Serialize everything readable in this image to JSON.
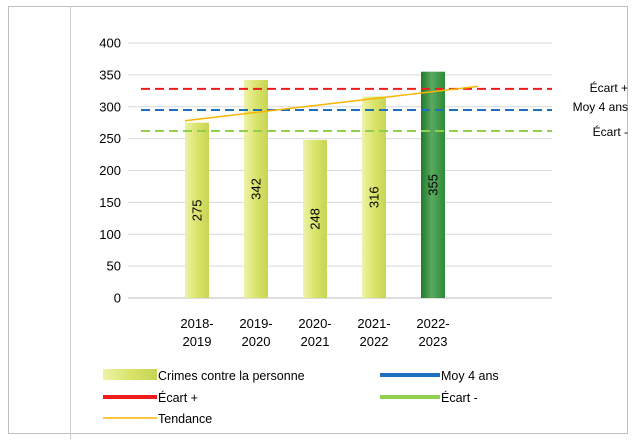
{
  "chart_data": {
    "type": "bar",
    "categories": [
      "2018-2019",
      "2019-2020",
      "2020-2021",
      "2021-2022",
      "2022-2023"
    ],
    "category_lines": [
      [
        "2018-",
        "2019"
      ],
      [
        "2019-",
        "2020"
      ],
      [
        "2020-",
        "2021"
      ],
      [
        "2021-",
        "2022"
      ],
      [
        "2022-",
        "2023"
      ]
    ],
    "series": [
      {
        "name": "Crimes contre la personne",
        "values": [
          275,
          342,
          248,
          316,
          355
        ],
        "color": "#d9e46a",
        "highlight_color": "#2e8b3a",
        "highlight_index": 4
      }
    ],
    "data_labels": [
      "275",
      "342",
      "248",
      "316",
      "355"
    ],
    "reference_lines": [
      {
        "name": "Écart +",
        "label": "Écart +",
        "value": 328,
        "color": "#ee1c1c",
        "dash": true
      },
      {
        "name": "Moy 4 ans",
        "label": "Moy 4 ans",
        "value": 295,
        "color": "#1f6fbf",
        "dash": true
      },
      {
        "name": "Écart -",
        "label": "Écart -",
        "value": 262,
        "color": "#8fd14f",
        "dash": true
      }
    ],
    "trend": {
      "name": "Tendance",
      "start": 278,
      "end": 332,
      "color": "#f7b500"
    },
    "yticks": [
      0,
      50,
      100,
      150,
      200,
      250,
      300,
      350,
      400
    ],
    "ylim": [
      0,
      400
    ],
    "grid": true,
    "legend_position": "bottom",
    "legend": [
      {
        "label": "Crimes contre la personne",
        "kind": "bar"
      },
      {
        "label": "Moy 4 ans",
        "kind": "line-thick-blue"
      },
      {
        "label": "Écart +",
        "kind": "line-thick-red"
      },
      {
        "label": "Écart -",
        "kind": "line-thick-green"
      },
      {
        "label": "Tendance",
        "kind": "line-thin-orange"
      }
    ]
  }
}
